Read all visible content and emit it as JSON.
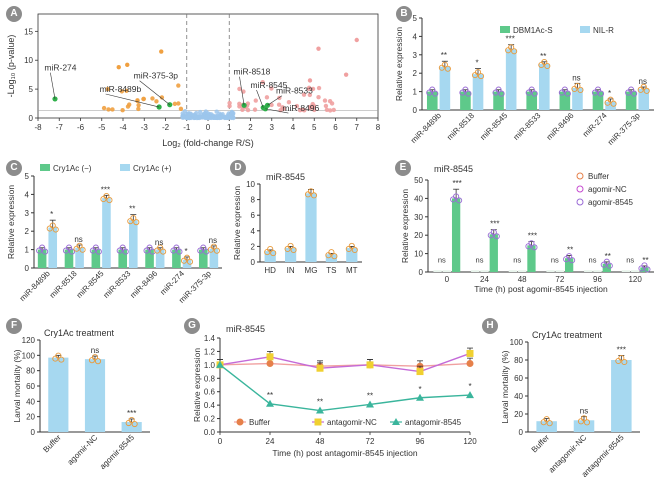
{
  "colors": {
    "dbm": "#5ec98a",
    "nil": "#a6d8f0",
    "open": "#e89a3c",
    "purple": "#9a6bd6",
    "buffer": "#e6804a",
    "agoNC": "#f0d030",
    "antago": "#3ab59c",
    "sig_up": "#f0a0a0",
    "sig_down": "#f0a040",
    "ns": "#9cc6ec",
    "highlight": "#2fb04a"
  },
  "panels": {
    "A": {
      "badge": "A"
    },
    "B": {
      "badge": "B"
    },
    "C": {
      "badge": "C"
    },
    "D": {
      "badge": "D"
    },
    "E": {
      "badge": "E"
    },
    "F": {
      "badge": "F"
    },
    "G": {
      "badge": "G"
    },
    "H": {
      "badge": "H"
    }
  },
  "chart_data": [
    {
      "id": "A",
      "type": "scatter",
      "xlabel": "Log₂ (fold-change R/S)",
      "ylabel": "-Log₁₀ (p-value)",
      "xlim": [
        -8,
        8
      ],
      "ylim": [
        0,
        18
      ],
      "xticks": [
        -8,
        -7,
        -6,
        -5,
        -4,
        -3,
        -2,
        -1,
        0,
        1,
        2,
        3,
        4,
        5,
        6,
        7,
        8
      ],
      "yticks": [
        0,
        5,
        10,
        15
      ],
      "threshold_lines": [
        -1,
        1
      ],
      "labels": [
        {
          "text": "miR-274",
          "x": -7.2,
          "y": 3.3
        },
        {
          "text": "miR-8489b",
          "x": -2.3,
          "y": 1.9
        },
        {
          "text": "miR-375-3p",
          "x": -1.8,
          "y": 2.8
        },
        {
          "text": "miR-8518",
          "x": 1.6,
          "y": 3.3
        },
        {
          "text": "miR-8545",
          "x": 2.7,
          "y": 1.9
        },
        {
          "text": "miR-8533",
          "x": 3.1,
          "y": 2.3
        },
        {
          "text": "miR-8496",
          "x": 2.8,
          "y": 1.6
        }
      ]
    },
    {
      "id": "B",
      "type": "bar",
      "ylabel": "Relative expression",
      "ylim": [
        0,
        5
      ],
      "yticks": [
        0,
        1,
        2,
        3,
        4,
        5
      ],
      "categories": [
        "miR-8489b",
        "miR-8518",
        "miR-8545",
        "miR-8533",
        "miR-8496",
        "miR-274",
        "miR-375-3p"
      ],
      "series": [
        {
          "name": "DBM1Ac-S",
          "values": [
            1,
            1,
            1,
            1,
            1,
            1,
            1
          ]
        },
        {
          "name": "NIL-R",
          "values": [
            2.35,
            1.95,
            3.3,
            2.5,
            1.2,
            0.45,
            1.15
          ]
        }
      ],
      "errors": [
        0.3,
        0.3,
        0.25,
        0.12,
        0.25,
        0.15,
        0.1
      ],
      "significance": [
        "**",
        "*",
        "***",
        "**",
        "ns",
        "*",
        "ns"
      ]
    },
    {
      "id": "C",
      "type": "bar",
      "ylabel": "Relative expression",
      "ylim": [
        0,
        5
      ],
      "yticks": [
        0,
        1,
        2,
        3,
        4,
        5
      ],
      "categories": [
        "miR-8489b",
        "miR-8518",
        "miR-8545",
        "miR-8533",
        "miR-8496",
        "miR-274",
        "miR-375-3p"
      ],
      "series": [
        {
          "name": "Cry1Ac (−)",
          "values": [
            1,
            1,
            1,
            1,
            1,
            1,
            1
          ]
        },
        {
          "name": "Cry1Ac (+)",
          "values": [
            2.2,
            1.1,
            3.8,
            2.6,
            1.0,
            0.45,
            1.05
          ]
        }
      ],
      "errors": [
        0.4,
        0.15,
        0.15,
        0.3,
        0.1,
        0.15,
        0.15
      ],
      "significance": [
        "*",
        "ns",
        "***",
        "**",
        "ns",
        "*",
        "ns"
      ]
    },
    {
      "id": "D",
      "type": "bar",
      "title": "miR-8545",
      "ylabel": "Relative expression",
      "ylim": [
        0,
        10
      ],
      "yticks": [
        0,
        2,
        4,
        6,
        8,
        10
      ],
      "categories": [
        "HD",
        "IN",
        "MG",
        "TS",
        "MT"
      ],
      "values": [
        1.4,
        1.8,
        8.8,
        1.0,
        1.8
      ],
      "errors": [
        0.15,
        0.2,
        0.5,
        0.1,
        0.2
      ]
    },
    {
      "id": "E",
      "type": "bar",
      "title": "miR-8545",
      "ylabel": "Relative expression",
      "xlabel": "Time (h) post agomir-8545 injection",
      "ylim": [
        0,
        50
      ],
      "yticks": [
        0,
        10,
        20,
        30,
        40,
        50
      ],
      "categories": [
        "0",
        "24",
        "48",
        "72",
        "96",
        "120"
      ],
      "series": [
        {
          "name": "Buffer",
          "values": [
            1,
            1,
            1,
            1,
            1,
            1
          ]
        },
        {
          "name": "agomir-NC",
          "values": [
            1,
            1,
            1,
            1,
            1,
            1
          ]
        },
        {
          "name": "agomir-8545",
          "values": [
            40,
            20.5,
            14.5,
            7.5,
            4.5,
            2.5
          ]
        }
      ],
      "errors": [
        5,
        2.5,
        2,
        1.5,
        1,
        0.8
      ],
      "significance": [
        [
          "ns",
          "***"
        ],
        [
          "ns",
          "***"
        ],
        [
          "ns",
          "***"
        ],
        [
          "ns",
          "**"
        ],
        [
          "ns",
          "**"
        ],
        [
          "ns",
          "**"
        ]
      ]
    },
    {
      "id": "F",
      "type": "bar",
      "title": "Cry1Ac treatment",
      "ylabel": "Larval mortality (%)",
      "ylim": [
        0,
        120
      ],
      "yticks": [
        0,
        20,
        40,
        60,
        80,
        100,
        120
      ],
      "categories": [
        "Buffer",
        "agomir-NC",
        "agomir-8545"
      ],
      "values": [
        97,
        95,
        13
      ],
      "errors": [
        3,
        4,
        4
      ],
      "significance": [
        "",
        "ns",
        "***"
      ]
    },
    {
      "id": "G",
      "type": "line",
      "title": "miR-8545",
      "ylabel": "Relative expression",
      "xlabel": "Time (h) post antagomir-8545 injection",
      "ylim": [
        0,
        1.4
      ],
      "yticks": [
        0,
        0.2,
        0.4,
        0.6,
        0.8,
        1.0,
        1.2,
        1.4
      ],
      "x": [
        0,
        24,
        48,
        72,
        96,
        120
      ],
      "series": [
        {
          "name": "Buffer",
          "values": [
            1.0,
            1.02,
            0.98,
            1.0,
            0.98,
            1.02
          ]
        },
        {
          "name": "antagomir-NC",
          "values": [
            1.0,
            1.12,
            0.95,
            1.0,
            0.9,
            1.17
          ]
        },
        {
          "name": "antagomir-8545",
          "values": [
            1.0,
            0.42,
            0.32,
            0.41,
            0.51,
            0.55
          ]
        }
      ],
      "significance": [
        "",
        "**",
        "**",
        "**",
        "*",
        "*"
      ]
    },
    {
      "id": "H",
      "type": "bar",
      "title": "Cry1Ac treatment",
      "ylabel": "Larval mortality (%)",
      "ylim": [
        0,
        100
      ],
      "yticks": [
        0,
        20,
        40,
        60,
        80,
        100
      ],
      "categories": [
        "Buffer",
        "antagomir-NC",
        "antagomir-8545"
      ],
      "values": [
        12,
        13,
        80
      ],
      "errors": [
        3,
        4,
        5
      ],
      "significance": [
        "",
        "ns",
        "***"
      ]
    }
  ]
}
